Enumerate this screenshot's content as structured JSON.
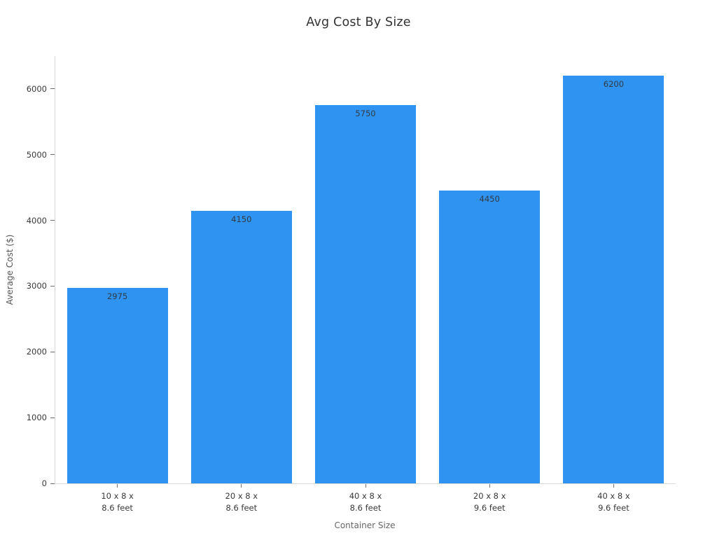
{
  "chart_data": {
    "type": "bar",
    "title": "Avg Cost By Size",
    "xlabel": "Container Size",
    "ylabel": "Average Cost ($)",
    "categories": [
      "10 x 8 x\n8.6 feet",
      "20 x 8 x\n8.6 feet",
      "40 x 8 x\n8.6 feet",
      "20 x 8 x\n9.6 feet",
      "40 x 8 x\n9.6 feet"
    ],
    "values": [
      2975,
      4150,
      5750,
      4450,
      6200
    ],
    "bar_labels": [
      "2975",
      "4150",
      "5750",
      "4450",
      "6200"
    ],
    "yticks": [
      0,
      1000,
      2000,
      3000,
      4000,
      5000,
      6000
    ],
    "ylim": [
      0,
      6500
    ],
    "bar_color": "#2E93F1",
    "grid": false,
    "legend": null,
    "background_color": "#ffffff",
    "axis_line_color": "#d8d8d8"
  }
}
